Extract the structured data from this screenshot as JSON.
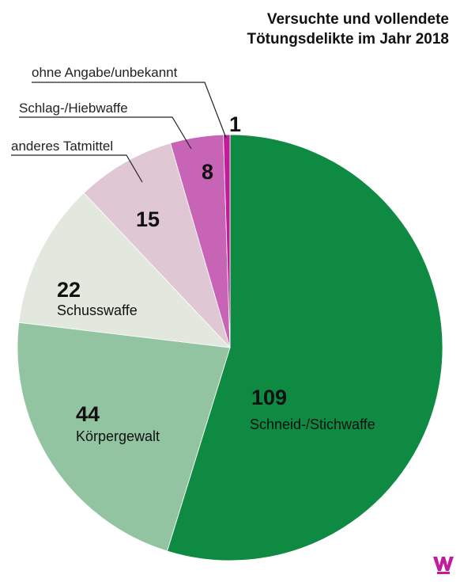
{
  "title_lines": [
    "Versuchte und vollendete",
    "Tötungsdelikte im Jahr 2018"
  ],
  "chart_data": {
    "type": "pie",
    "title": "Versuchte und vollendete Tötungsdelikte im Jahr 2018",
    "slices": [
      {
        "label": "Schneid-/Stichwaffe",
        "value": 109,
        "color": "#0e8a42",
        "show_name": true
      },
      {
        "label": "Körpergewalt",
        "value": 44,
        "color": "#93c4a1",
        "show_name": true
      },
      {
        "label": "Schusswaffe",
        "value": 22,
        "color": "#e2e8de",
        "show_name": true
      },
      {
        "label": "anderes Tatmittel",
        "value": 15,
        "color": "#dfc7d3",
        "show_name": false
      },
      {
        "label": "Schlag-/Hiebwaffe",
        "value": 8,
        "color": "#c764b6",
        "show_name": false
      },
      {
        "label": "ohne Angabe/unbekannt",
        "value": 1,
        "color": "#c41a9b",
        "show_name": false
      }
    ],
    "start_angle_deg": 0,
    "direction": "clockwise",
    "legend": "none"
  },
  "logo": {
    "letter": "W",
    "color": "#c41a9b"
  }
}
